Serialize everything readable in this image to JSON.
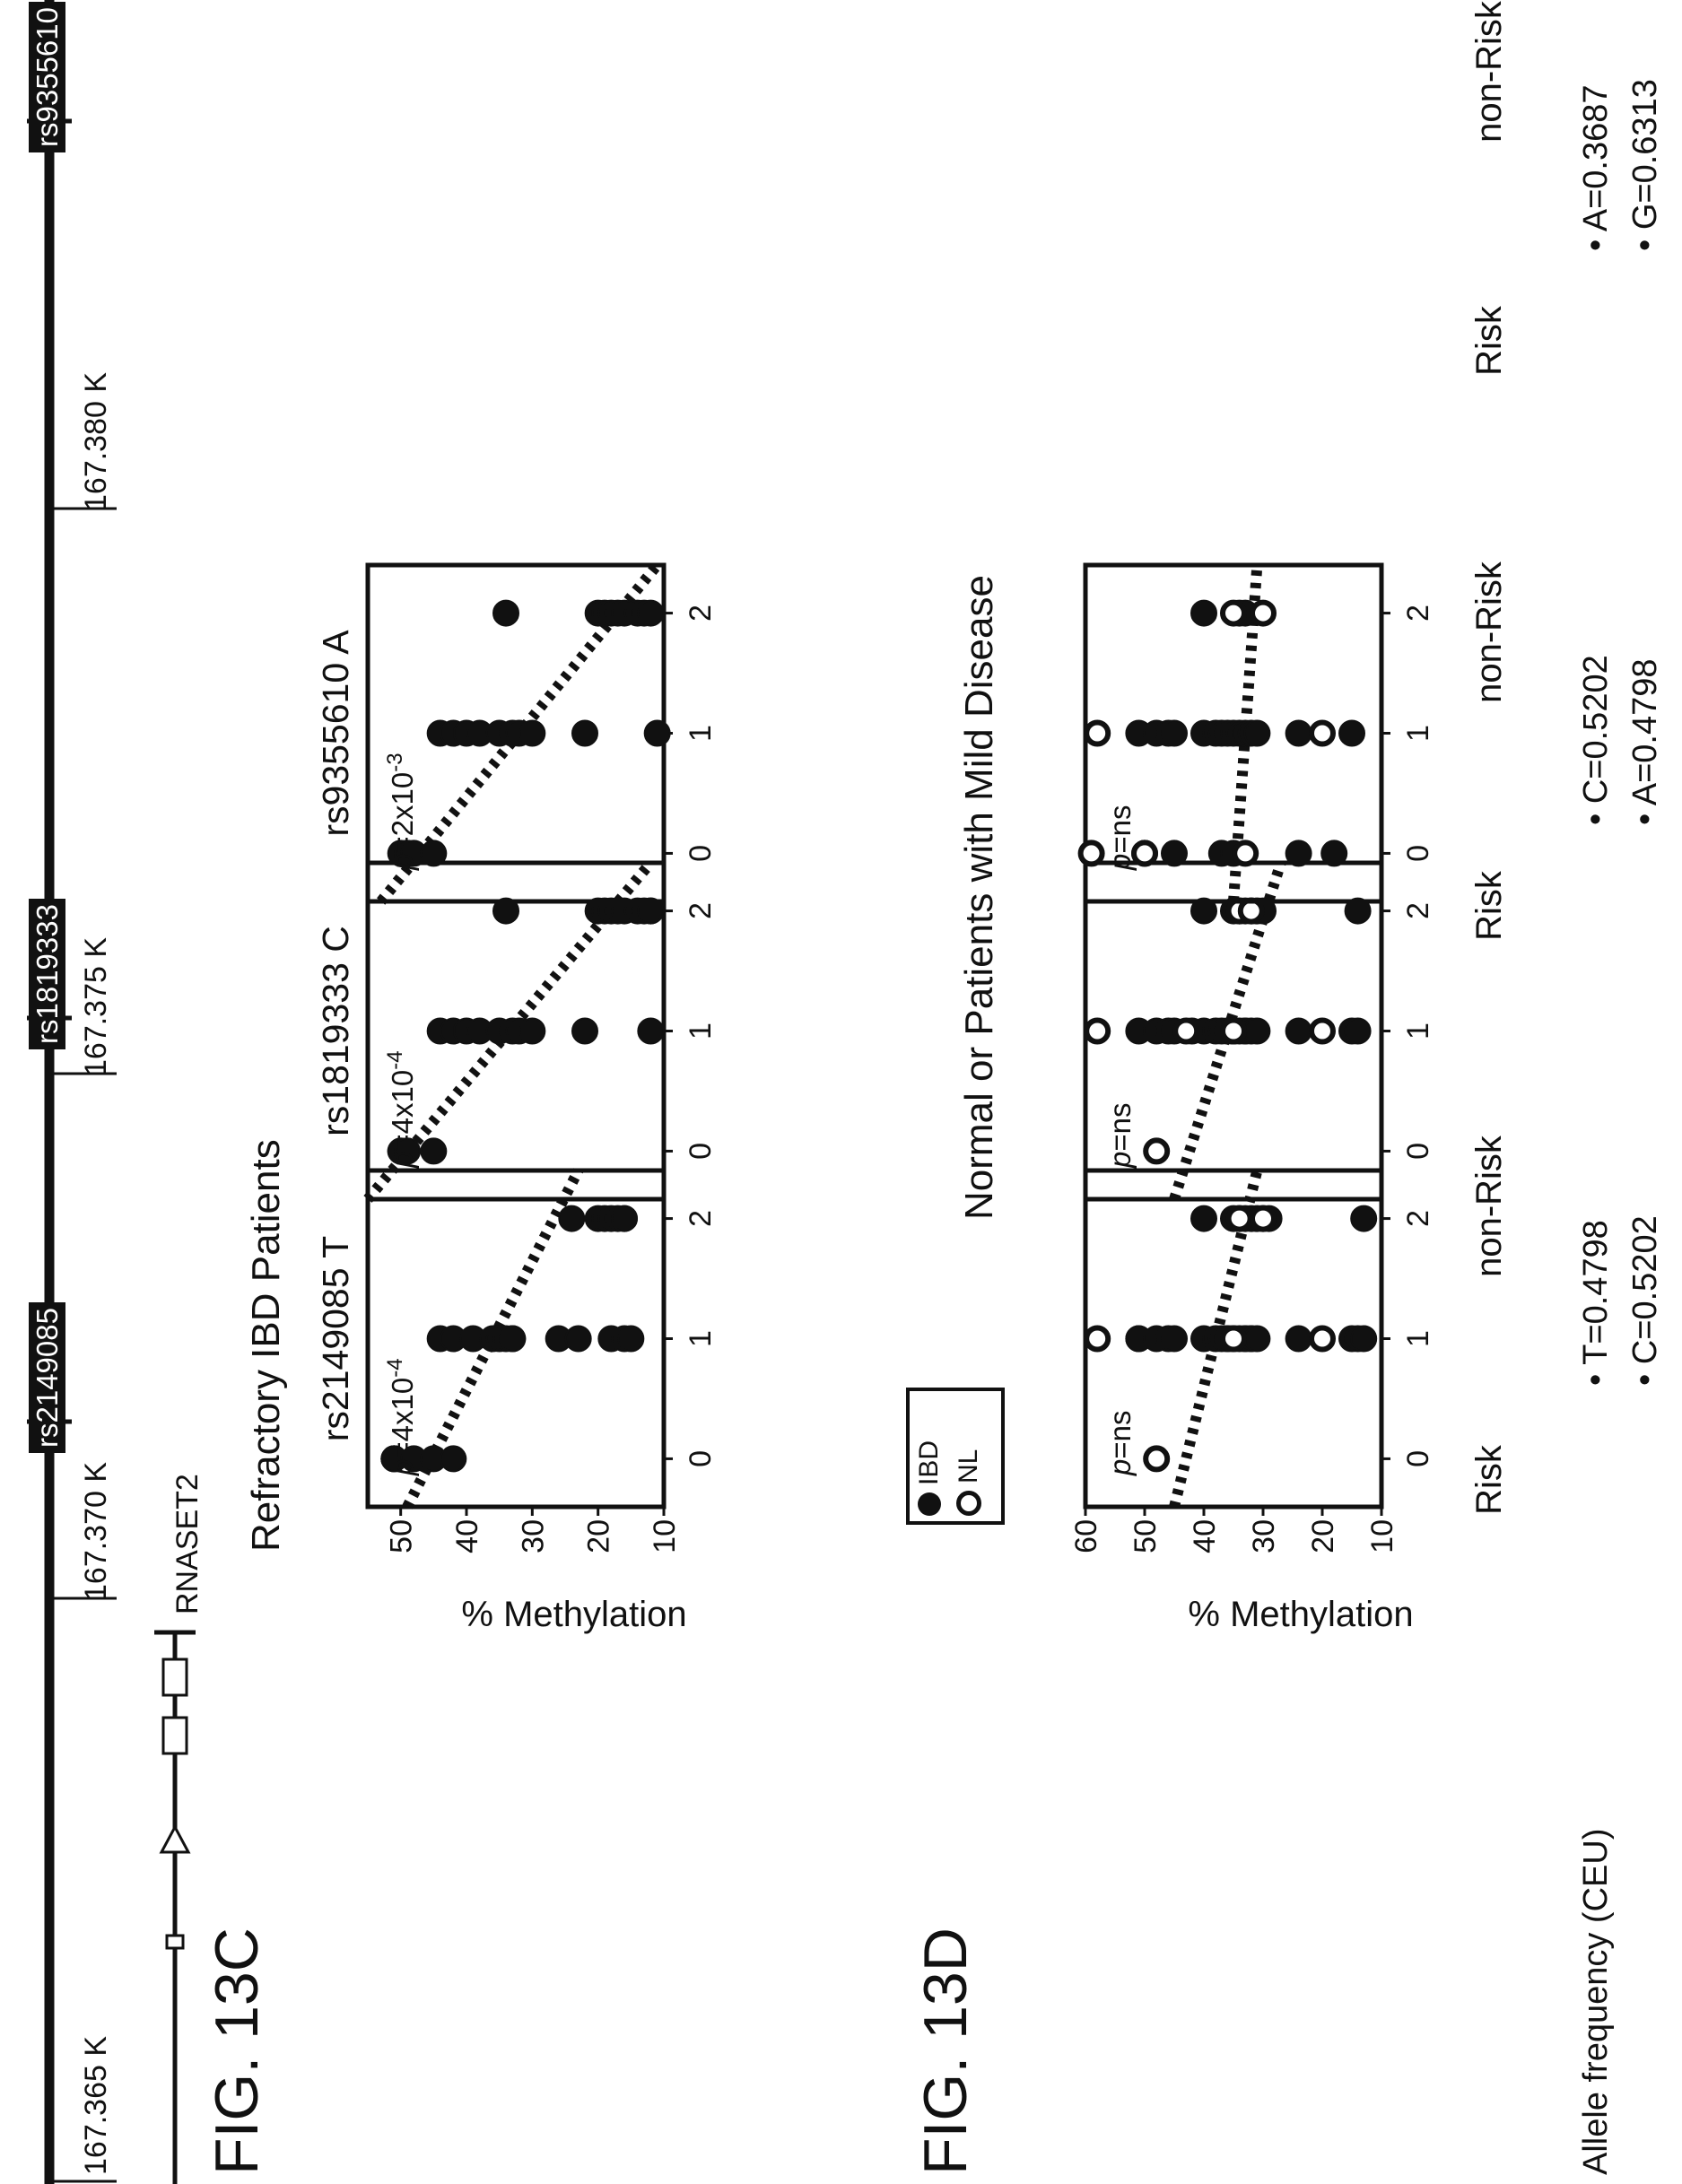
{
  "genome_track": {
    "coords": [
      "167.365 K",
      "167.370 K",
      "167.375 K",
      "167.380 K"
    ],
    "snp_labels": [
      "rs2149085",
      "rs1819333",
      "rs9355610"
    ],
    "gene_label": "RNASET2"
  },
  "figure_labels": {
    "fig_c": "FIG. 13C",
    "fig_d": "FIG. 13D"
  },
  "titles": {
    "refractory": "Refractory IBD Patients",
    "normal": "Normal or Patients with Mild Disease"
  },
  "y_axis_label": "% Methylation",
  "x_categories": {
    "risk": "Risk",
    "non_risk": "non-Risk"
  },
  "legend": {
    "ibd": "IBD",
    "nl": "NL"
  },
  "allele_freq": {
    "label": "Allele frequency (CEU)",
    "col1": [
      "• T=0.4798",
      "• C=0.5202"
    ],
    "col2": [
      "• C=0.5202",
      "• A=0.4798"
    ],
    "col3": [
      "• A=0.3687",
      "• G=0.6313"
    ]
  },
  "chart_data": [
    {
      "type": "scatter",
      "panel": "13C-1",
      "title": "rs2149085 T",
      "p_prefix": "p",
      "p_value": "=4x10",
      "p_exp": "-4",
      "xlim": [
        -0.4,
        2.4
      ],
      "ylim": [
        10,
        55
      ],
      "yticks": [
        10,
        20,
        30,
        40,
        50
      ],
      "xticks": [
        0,
        1,
        2
      ],
      "trend": [
        [
          -0.4,
          49
        ],
        [
          2.4,
          23
        ]
      ],
      "series": [
        {
          "filled": true,
          "points": [
            [
              0,
              51
            ],
            [
              0,
              51
            ],
            [
              0,
              51
            ],
            [
              0,
              48
            ],
            [
              0,
              45
            ],
            [
              0,
              42
            ],
            [
              1,
              44
            ],
            [
              1,
              42
            ],
            [
              1,
              39
            ],
            [
              1,
              36
            ],
            [
              1,
              35
            ],
            [
              1,
              34
            ],
            [
              1,
              33
            ],
            [
              1,
              33
            ],
            [
              1,
              26
            ],
            [
              1,
              23
            ],
            [
              1,
              18
            ],
            [
              1,
              16
            ],
            [
              1,
              15
            ],
            [
              2,
              24
            ],
            [
              2,
              20
            ],
            [
              2,
              19
            ],
            [
              2,
              18
            ],
            [
              2,
              17
            ],
            [
              2,
              16
            ],
            [
              2,
              16
            ]
          ]
        }
      ]
    },
    {
      "type": "scatter",
      "panel": "13C-2",
      "title": "rs1819333 C",
      "p_prefix": "p",
      "p_value": "=4x10",
      "p_exp": "-4",
      "xlim": [
        -0.4,
        2.4
      ],
      "ylim": [
        10,
        55
      ],
      "yticks": [
        10,
        20,
        30,
        40,
        50
      ],
      "xticks": [
        0,
        1,
        2
      ],
      "trend": [
        [
          -0.4,
          55
        ],
        [
          2.4,
          12
        ]
      ],
      "series": [
        {
          "filled": true,
          "points": [
            [
              0,
              50
            ],
            [
              0,
              50
            ],
            [
              0,
              49
            ],
            [
              0,
              49
            ],
            [
              0,
              45
            ],
            [
              1,
              44
            ],
            [
              1,
              42
            ],
            [
              1,
              40
            ],
            [
              1,
              38
            ],
            [
              1,
              35
            ],
            [
              1,
              33
            ],
            [
              1,
              32
            ],
            [
              1,
              30
            ],
            [
              1,
              22
            ],
            [
              1,
              12
            ],
            [
              2,
              34
            ],
            [
              2,
              20
            ],
            [
              2,
              19
            ],
            [
              2,
              18
            ],
            [
              2,
              17
            ],
            [
              2,
              16
            ],
            [
              2,
              14
            ],
            [
              2,
              13
            ],
            [
              2,
              12
            ],
            [
              2,
              12
            ]
          ]
        }
      ]
    },
    {
      "type": "scatter",
      "panel": "13C-3",
      "title": "rs9355610 A",
      "p_prefix": "p",
      "p_value": "=2x10",
      "p_exp": "-3",
      "xlim": [
        -0.4,
        2.4
      ],
      "ylim": [
        10,
        55
      ],
      "yticks": [
        10,
        20,
        30,
        40,
        50
      ],
      "xticks": [
        0,
        1,
        2
      ],
      "trend": [
        [
          -0.4,
          53
        ],
        [
          2.4,
          11
        ]
      ],
      "series": [
        {
          "filled": true,
          "points": [
            [
              0,
              50
            ],
            [
              0,
              49
            ],
            [
              0,
              49
            ],
            [
              0,
              48
            ],
            [
              0,
              45
            ],
            [
              1,
              44
            ],
            [
              1,
              42
            ],
            [
              1,
              40
            ],
            [
              1,
              38
            ],
            [
              1,
              35
            ],
            [
              1,
              33
            ],
            [
              1,
              32
            ],
            [
              1,
              30
            ],
            [
              1,
              22
            ],
            [
              1,
              11
            ],
            [
              2,
              34
            ],
            [
              2,
              20
            ],
            [
              2,
              19
            ],
            [
              2,
              18
            ],
            [
              2,
              17
            ],
            [
              2,
              16
            ],
            [
              2,
              14
            ],
            [
              2,
              13
            ],
            [
              2,
              12
            ]
          ]
        }
      ]
    },
    {
      "type": "scatter",
      "panel": "13D-1",
      "title": "",
      "p_prefix": "p",
      "p_value": "=ns",
      "p_exp": "",
      "xlim": [
        -0.4,
        2.4
      ],
      "ylim": [
        10,
        60
      ],
      "yticks": [
        10,
        20,
        30,
        40,
        50,
        60
      ],
      "xticks": [
        0,
        1,
        2
      ],
      "trend": [
        [
          -0.4,
          45
        ],
        [
          2.4,
          31
        ]
      ],
      "series": [
        {
          "name": "IBD",
          "filled": true,
          "points": [
            [
              1,
              51
            ],
            [
              1,
              51
            ],
            [
              1,
              48
            ],
            [
              1,
              46
            ],
            [
              1,
              45
            ],
            [
              1,
              40
            ],
            [
              1,
              38
            ],
            [
              1,
              37
            ],
            [
              1,
              36
            ],
            [
              1,
              36
            ],
            [
              1,
              35
            ],
            [
              1,
              34
            ],
            [
              1,
              33
            ],
            [
              1,
              33
            ],
            [
              1,
              32
            ],
            [
              1,
              32
            ],
            [
              1,
              31
            ],
            [
              1,
              24
            ],
            [
              1,
              15
            ],
            [
              1,
              14
            ],
            [
              1,
              13
            ],
            [
              2,
              40
            ],
            [
              2,
              35
            ],
            [
              2,
              34
            ],
            [
              2,
              33
            ],
            [
              2,
              32
            ],
            [
              2,
              31
            ],
            [
              2,
              30
            ],
            [
              2,
              29
            ],
            [
              2,
              13
            ]
          ]
        },
        {
          "name": "NL",
          "filled": false,
          "points": [
            [
              0,
              48
            ],
            [
              1,
              58
            ],
            [
              1,
              35
            ],
            [
              1,
              20
            ],
            [
              2,
              34
            ],
            [
              2,
              30
            ]
          ]
        }
      ]
    },
    {
      "type": "scatter",
      "panel": "13D-2",
      "title": "",
      "p_prefix": "p",
      "p_value": "=ns",
      "p_exp": "",
      "xlim": [
        -0.4,
        2.4
      ],
      "ylim": [
        10,
        60
      ],
      "yticks": [
        10,
        20,
        30,
        40,
        50,
        60
      ],
      "xticks": [
        0,
        1,
        2
      ],
      "trend": [
        [
          -0.4,
          45
        ],
        [
          2.4,
          27
        ]
      ],
      "series": [
        {
          "name": "IBD",
          "filled": true,
          "points": [
            [
              1,
              51
            ],
            [
              1,
              48
            ],
            [
              1,
              46
            ],
            [
              1,
              45
            ],
            [
              1,
              42
            ],
            [
              1,
              40
            ],
            [
              1,
              38
            ],
            [
              1,
              37
            ],
            [
              1,
              36
            ],
            [
              1,
              35
            ],
            [
              1,
              35
            ],
            [
              1,
              34
            ],
            [
              1,
              33
            ],
            [
              1,
              33
            ],
            [
              1,
              32
            ],
            [
              1,
              31
            ],
            [
              1,
              24
            ],
            [
              1,
              15
            ],
            [
              1,
              14
            ],
            [
              2,
              40
            ],
            [
              2,
              35
            ],
            [
              2,
              34
            ],
            [
              2,
              33
            ],
            [
              2,
              32
            ],
            [
              2,
              31
            ],
            [
              2,
              30
            ],
            [
              2,
              14
            ]
          ]
        },
        {
          "name": "NL",
          "filled": false,
          "points": [
            [
              0,
              48
            ],
            [
              1,
              58
            ],
            [
              1,
              43
            ],
            [
              1,
              35
            ],
            [
              1,
              20
            ],
            [
              2,
              34
            ],
            [
              2,
              32
            ]
          ]
        }
      ]
    },
    {
      "type": "scatter",
      "panel": "13D-3",
      "title": "",
      "p_prefix": "p",
      "p_value": "=ns",
      "p_exp": "",
      "xlim": [
        -0.4,
        2.4
      ],
      "ylim": [
        10,
        60
      ],
      "yticks": [
        10,
        20,
        30,
        40,
        50,
        60
      ],
      "xticks": [
        0,
        1,
        2
      ],
      "trend": [
        [
          -0.4,
          35
        ],
        [
          2.4,
          31
        ]
      ],
      "series": [
        {
          "name": "IBD",
          "filled": true,
          "points": [
            [
              0,
              50
            ],
            [
              0,
              45
            ],
            [
              0,
              37
            ],
            [
              0,
              35
            ],
            [
              0,
              24
            ],
            [
              0,
              18
            ],
            [
              1,
              51
            ],
            [
              1,
              48
            ],
            [
              1,
              46
            ],
            [
              1,
              45
            ],
            [
              1,
              40
            ],
            [
              1,
              38
            ],
            [
              1,
              37
            ],
            [
              1,
              36
            ],
            [
              1,
              35
            ],
            [
              1,
              34
            ],
            [
              1,
              33
            ],
            [
              1,
              32
            ],
            [
              1,
              31
            ],
            [
              1,
              24
            ],
            [
              1,
              15
            ],
            [
              2,
              40
            ],
            [
              2,
              34
            ],
            [
              2,
              33
            ]
          ]
        },
        {
          "name": "NL",
          "filled": false,
          "points": [
            [
              0,
              59
            ],
            [
              0,
              50
            ],
            [
              0,
              33
            ],
            [
              1,
              58
            ],
            [
              1,
              20
            ],
            [
              2,
              35
            ],
            [
              2,
              30
            ]
          ]
        }
      ]
    }
  ]
}
